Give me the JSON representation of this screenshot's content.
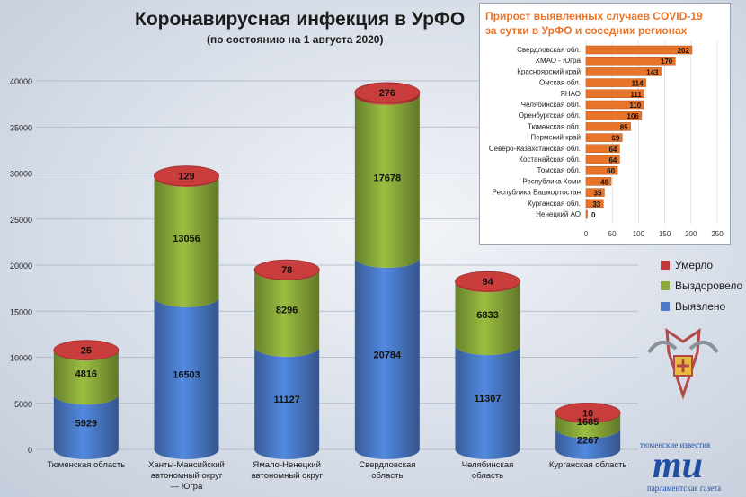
{
  "title": "Коронавирусная инфекция в УрФО",
  "subtitle": "(по состоянию на 1 августа 2020)",
  "colors": {
    "detected": "#4a7ac8",
    "recovered": "#8aaa3a",
    "died": "#c03a3a",
    "inset_bar": "#e8742a",
    "inset_title": "#e8742a"
  },
  "legend": [
    {
      "label": "Умерло",
      "color": "#c03a3a"
    },
    {
      "label": "Выздоровело",
      "color": "#8aaa3a"
    },
    {
      "label": "Выявлено",
      "color": "#4a7ac8"
    }
  ],
  "chart_data": [
    {
      "type": "bar",
      "stacked": true,
      "categories": [
        [
          "Тюменская область"
        ],
        [
          "Ханты-Мансийский",
          "автономный округ",
          "— Югра"
        ],
        [
          "Ямало-Ненецкий",
          "автономный округ"
        ],
        [
          "Свердловская",
          "область"
        ],
        [
          "Челябинская",
          "область"
        ],
        [
          "Курганская область"
        ]
      ],
      "series": [
        {
          "name": "Выявлено",
          "values": [
            5929,
            16503,
            11127,
            20784,
            11307,
            2267
          ]
        },
        {
          "name": "Выздоровело",
          "values": [
            4816,
            13056,
            8296,
            17678,
            6833,
            1685
          ]
        },
        {
          "name": "Умерло",
          "values": [
            25,
            129,
            78,
            276,
            94,
            10
          ]
        }
      ],
      "ylim": [
        0,
        40000
      ],
      "yticks": [
        0,
        5000,
        10000,
        15000,
        20000,
        25000,
        30000,
        35000,
        40000
      ],
      "grid": true,
      "legend_position": "right"
    },
    {
      "type": "bar",
      "orientation": "horizontal",
      "title_lines": [
        "Прирост выявленных случаев COVID-19",
        "за сутки в УрФО и соседних регионах"
      ],
      "categories": [
        "Свердловская обл.",
        "ХМАО - Югра",
        "Красноярский край",
        "Омская обл.",
        "ЯНАО",
        "Челябинская обл.",
        "Оренбургская обл.",
        "Тюменская обл.",
        "Пермский край",
        "Северо-Казахстанская обл.",
        "Костанайская обл.",
        "Томская обл.",
        "Республика Коми",
        "Республика Башкортостан",
        "Курганская обл.",
        "Ненецкий АО"
      ],
      "values": [
        202,
        170,
        143,
        114,
        111,
        110,
        106,
        85,
        69,
        64,
        64,
        60,
        48,
        35,
        33,
        0
      ],
      "xlim": [
        0,
        250
      ],
      "xticks": [
        0,
        50,
        100,
        150,
        200,
        250
      ],
      "grid": true
    }
  ],
  "logo": {
    "line1": "тюменские известия",
    "mark": "ти",
    "line2": "парламентская газета"
  }
}
